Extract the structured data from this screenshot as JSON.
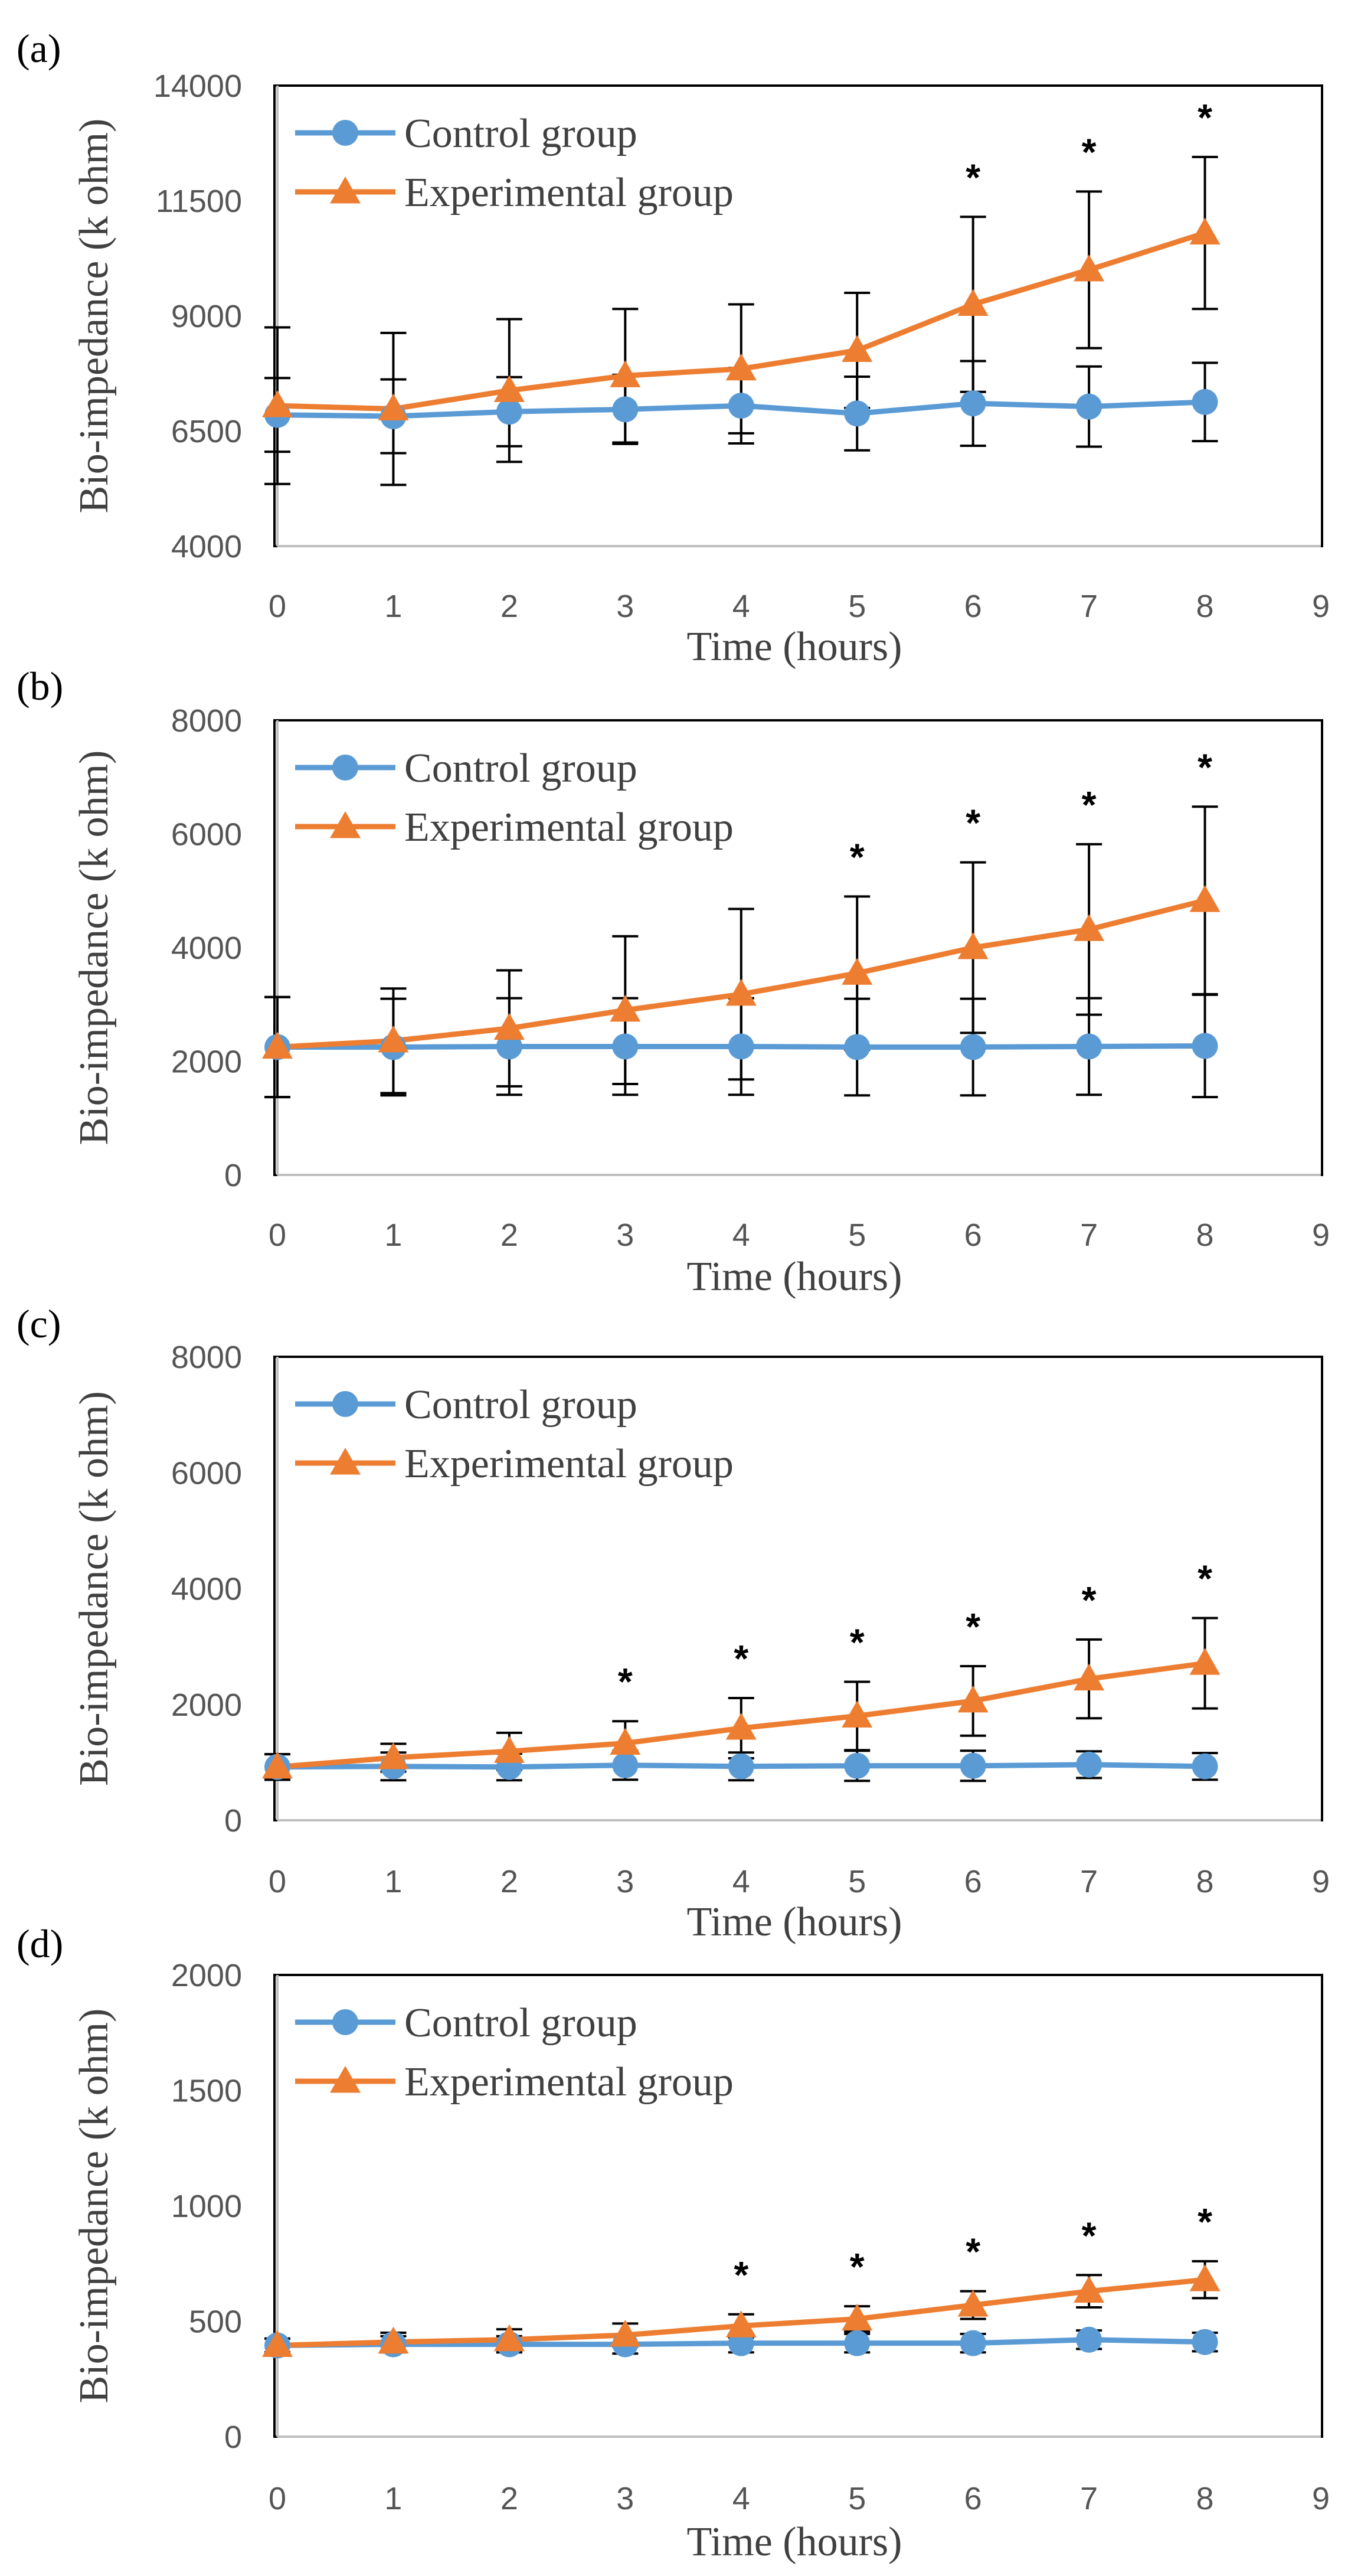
{
  "colors": {
    "control": "#5B9BD5",
    "experimental": "#ED7D31",
    "error_bar": "#000000",
    "axis": "#BFBFBF",
    "frame": "#000000"
  },
  "chart_data": [
    {
      "type": "line",
      "panel_label": "(a)",
      "title": "",
      "xlabel": "Time (hours)",
      "ylabel": "Bio-impedance (k ohm)",
      "xlim": [
        0,
        9
      ],
      "ylim": [
        4000,
        14000
      ],
      "x_ticks": [
        0,
        1,
        2,
        3,
        4,
        5,
        6,
        7,
        8,
        9
      ],
      "y_ticks": [
        4000,
        6500,
        9000,
        11500,
        14000
      ],
      "x": [
        0,
        1,
        2,
        3,
        4,
        5,
        6,
        7,
        8
      ],
      "legend_position": "top-left",
      "series": [
        {
          "name": "Control group",
          "marker": "circle",
          "values": [
            6850,
            6820,
            6920,
            6970,
            7050,
            6880,
            7100,
            7030,
            7130
          ],
          "errors": [
            800,
            800,
            750,
            750,
            820,
            800,
            920,
            870,
            850
          ]
        },
        {
          "name": "Experimental group",
          "marker": "triangle",
          "values": [
            7050,
            6980,
            7380,
            7700,
            7850,
            8250,
            9250,
            10000,
            10800
          ],
          "errors": [
            1700,
            1650,
            1550,
            1450,
            1400,
            1250,
            1900,
            1700,
            1650
          ]
        }
      ],
      "significance": [
        {
          "x": 6,
          "label": "*"
        },
        {
          "x": 7,
          "label": "*"
        },
        {
          "x": 8,
          "label": "*"
        }
      ]
    },
    {
      "type": "line",
      "panel_label": "(b)",
      "title": "",
      "xlabel": "Time (hours)",
      "ylabel": "Bio-impedance (k ohm)",
      "xlim": [
        0,
        9
      ],
      "ylim": [
        0,
        8000
      ],
      "x_ticks": [
        0,
        1,
        2,
        3,
        4,
        5,
        6,
        7,
        8,
        9
      ],
      "y_ticks": [
        0,
        2000,
        4000,
        6000,
        8000
      ],
      "x": [
        0,
        1,
        2,
        3,
        4,
        5,
        6,
        7,
        8
      ],
      "legend_position": "top-left",
      "series": [
        {
          "name": "Control group",
          "marker": "circle",
          "values": [
            2250,
            2250,
            2260,
            2260,
            2260,
            2250,
            2250,
            2260,
            2270
          ],
          "errors": [
            880,
            850,
            850,
            850,
            850,
            850,
            850,
            850,
            900
          ]
        },
        {
          "name": "Experimental group",
          "marker": "triangle",
          "values": [
            2250,
            2360,
            2580,
            2900,
            3180,
            3550,
            4000,
            4320,
            4830
          ],
          "errors": [
            880,
            920,
            1020,
            1300,
            1500,
            1350,
            1500,
            1500,
            1650
          ]
        }
      ],
      "significance": [
        {
          "x": 5,
          "label": "*"
        },
        {
          "x": 6,
          "label": "*"
        },
        {
          "x": 7,
          "label": "*"
        },
        {
          "x": 8,
          "label": "*"
        }
      ]
    },
    {
      "type": "line",
      "panel_label": "(c)",
      "title": "",
      "xlabel": "Time (hours)",
      "ylabel": "Bio-impedance (k ohm)",
      "xlim": [
        0,
        9
      ],
      "ylim": [
        0,
        8000
      ],
      "x_ticks": [
        0,
        1,
        2,
        3,
        4,
        5,
        6,
        7,
        8,
        9
      ],
      "y_ticks": [
        0,
        2000,
        4000,
        6000,
        8000
      ],
      "x": [
        0,
        1,
        2,
        3,
        4,
        5,
        6,
        7,
        8
      ],
      "legend_position": "top-left",
      "series": [
        {
          "name": "Control group",
          "marker": "circle",
          "values": [
            920,
            930,
            920,
            950,
            930,
            940,
            940,
            960,
            930
          ],
          "errors": [
            220,
            240,
            230,
            250,
            240,
            260,
            260,
            230,
            230
          ]
        },
        {
          "name": "Experimental group",
          "marker": "triangle",
          "values": [
            920,
            1080,
            1190,
            1330,
            1590,
            1800,
            2060,
            2440,
            2710
          ],
          "errors": [
            220,
            240,
            320,
            380,
            520,
            590,
            600,
            680,
            780
          ]
        }
      ],
      "significance": [
        {
          "x": 3,
          "label": "*"
        },
        {
          "x": 4,
          "label": "*"
        },
        {
          "x": 5,
          "label": "*"
        },
        {
          "x": 6,
          "label": "*"
        },
        {
          "x": 7,
          "label": "*"
        },
        {
          "x": 8,
          "label": "*"
        }
      ]
    },
    {
      "type": "line",
      "panel_label": "(d)",
      "title": "",
      "xlabel": "Time (hours)",
      "ylabel": "Bio-impedance (k ohm)",
      "xlim": [
        0,
        9
      ],
      "ylim": [
        0,
        2000
      ],
      "x_ticks": [
        0,
        1,
        2,
        3,
        4,
        5,
        6,
        7,
        8,
        9
      ],
      "y_ticks": [
        0,
        500,
        1000,
        1500,
        2000
      ],
      "x": [
        0,
        1,
        2,
        3,
        4,
        5,
        6,
        7,
        8
      ],
      "legend_position": "top-left",
      "series": [
        {
          "name": "Control group",
          "marker": "circle",
          "values": [
            395,
            400,
            400,
            400,
            405,
            405,
            405,
            420,
            410
          ],
          "errors": [
            30,
            35,
            35,
            40,
            40,
            40,
            40,
            40,
            40
          ]
        },
        {
          "name": "Experimental group",
          "marker": "triangle",
          "values": [
            395,
            410,
            420,
            440,
            480,
            510,
            570,
            630,
            680
          ],
          "errors": [
            30,
            40,
            45,
            50,
            50,
            55,
            60,
            70,
            80
          ]
        }
      ],
      "significance": [
        {
          "x": 4,
          "label": "*"
        },
        {
          "x": 5,
          "label": "*"
        },
        {
          "x": 6,
          "label": "*"
        },
        {
          "x": 7,
          "label": "*"
        },
        {
          "x": 8,
          "label": "*"
        }
      ]
    }
  ]
}
